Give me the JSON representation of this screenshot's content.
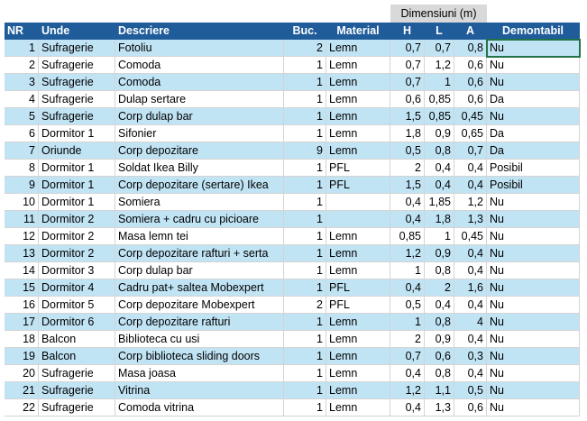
{
  "group_header": "Dimensiuni (m)",
  "table": {
    "columns": [
      "NR",
      "Unde",
      "Descriere",
      "Buc.",
      "Material",
      "H",
      "L",
      "A",
      "Demontabil"
    ],
    "rows": [
      [
        "1",
        "Sufragerie",
        "Fotoliu",
        "2",
        "Lemn",
        "0,7",
        "0,7",
        "0,8",
        "Nu"
      ],
      [
        "2",
        "Sufragerie",
        "Comoda",
        "1",
        "Lemn",
        "0,7",
        "1,2",
        "0,6",
        "Nu"
      ],
      [
        "3",
        "Sufragerie",
        "Comoda",
        "1",
        "Lemn",
        "0,7",
        "1",
        "0,6",
        "Nu"
      ],
      [
        "4",
        "Sufragerie",
        "Dulap sertare",
        "1",
        "Lemn",
        "0,6",
        "0,85",
        "0,6",
        "Da"
      ],
      [
        "5",
        "Sufragerie",
        "Corp dulap bar",
        "1",
        "Lemn",
        "1,5",
        "0,85",
        "0,45",
        "Nu"
      ],
      [
        "6",
        "Dormitor 1",
        "Sifonier",
        "1",
        "Lemn",
        "1,8",
        "0,9",
        "0,65",
        "Da"
      ],
      [
        "7",
        "Oriunde",
        "Corp depozitare",
        "9",
        "Lemn",
        "0,5",
        "0,8",
        "0,7",
        "Da"
      ],
      [
        "8",
        "Dormitor 1",
        "Soldat Ikea Billy",
        "1",
        "PFL",
        "2",
        "0,4",
        "0,4",
        "Posibil"
      ],
      [
        "9",
        "Dormitor 1",
        "Corp depozitare (sertare) Ikea",
        "1",
        "PFL",
        "1,5",
        "0,4",
        "0,4",
        "Posibil"
      ],
      [
        "10",
        "Dormitor 1",
        "Somiera",
        "1",
        null,
        "0,4",
        "1,85",
        "1,2",
        "Nu"
      ],
      [
        "11",
        "Dormitor 2",
        "Somiera + cadru cu picioare",
        "1",
        null,
        "0,4",
        "1,8",
        "1,3",
        "Nu"
      ],
      [
        "12",
        "Dormitor 2",
        "Masa lemn tei",
        "1",
        "Lemn",
        "0,85",
        "1",
        "0,45",
        "Nu"
      ],
      [
        "13",
        "Dormitor 2",
        "Corp depozitare rafturi + serta",
        "1",
        "Lemn",
        "1,2",
        "0,9",
        "0,4",
        "Nu"
      ],
      [
        "14",
        "Dormitor 3",
        "Corp dulap bar",
        "1",
        "Lemn",
        "1",
        "0,8",
        "0,4",
        "Nu"
      ],
      [
        "15",
        "Dormitor 4",
        "Cadru pat+ saltea Mobexpert",
        "1",
        "PFL",
        "0,4",
        "2",
        "1,6",
        "Nu"
      ],
      [
        "16",
        "Dormitor 5",
        "Corp depozitare Mobexpert",
        "2",
        "PFL",
        "0,5",
        "0,4",
        "0,4",
        "Nu"
      ],
      [
        "17",
        "Dormitor 6",
        "Corp depozitare rafturi",
        "1",
        "Lemn",
        "1",
        "0,8",
        "4",
        "Nu"
      ],
      [
        "18",
        "Balcon",
        "Biblioteca cu usi",
        "1",
        "Lemn",
        "2",
        "0,9",
        "0,4",
        "Nu"
      ],
      [
        "19",
        "Balcon",
        "Corp biblioteca sliding doors",
        "1",
        "Lemn",
        "0,7",
        "0,6",
        "0,3",
        "Nu"
      ],
      [
        "20",
        "Sufragerie",
        "Masa joasa",
        "1",
        "Lemn",
        "0,4",
        "0,8",
        "0,4",
        "Nu"
      ],
      [
        "21",
        "Sufragerie",
        "Vitrina",
        "1",
        "Lemn",
        "1,2",
        "1,1",
        "0,5",
        "Nu"
      ],
      [
        "22",
        "Sufragerie",
        "Comoda vitrina",
        "1",
        "Lemn",
        "0,4",
        "1,3",
        "0,6",
        "Nu"
      ]
    ]
  }
}
